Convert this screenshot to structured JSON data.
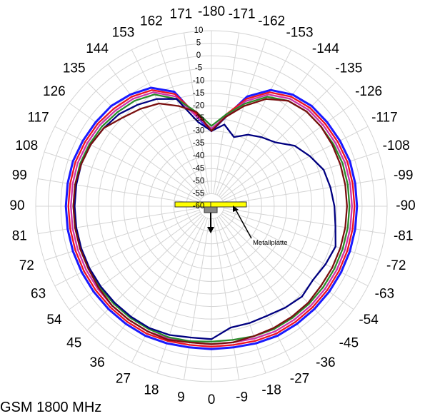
{
  "chart_data": {
    "type": "polar_line",
    "title": "",
    "angle_labels": [
      "0",
      "9",
      "18",
      "27",
      "36",
      "45",
      "54",
      "63",
      "72",
      "81",
      "90",
      "99",
      "108",
      "117",
      "126",
      "135",
      "144",
      "153",
      "162",
      "171",
      "-180",
      "-171",
      "-162",
      "-153",
      "-144",
      "-135",
      "-126",
      "-117",
      "-108",
      "-99",
      "-90",
      "-81",
      "-72",
      "-63",
      "-54",
      "-45",
      "-36",
      "-27",
      "-18",
      "-9"
    ],
    "angle_values": [
      0,
      9,
      18,
      27,
      36,
      45,
      54,
      63,
      72,
      81,
      90,
      99,
      108,
      117,
      126,
      135,
      144,
      153,
      162,
      171,
      180,
      -171,
      -162,
      -153,
      -144,
      -135,
      -126,
      -117,
      -108,
      -99,
      -90,
      -81,
      -72,
      -63,
      -54,
      -45,
      -36,
      -27,
      -18,
      -9
    ],
    "radial_labels": [
      "10",
      "5",
      "0",
      "-5",
      "-10",
      "-15",
      "-20",
      "-25",
      "-30",
      "-35",
      "-40",
      "-45",
      "-50",
      "-55",
      "-60"
    ],
    "rlim": [
      -60,
      10
    ],
    "grid": true,
    "angles": [
      0,
      9,
      18,
      27,
      36,
      45,
      54,
      63,
      72,
      81,
      90,
      99,
      108,
      117,
      126,
      135,
      144,
      153,
      162,
      171,
      180,
      -171,
      -162,
      -153,
      -144,
      -135,
      -126,
      -117,
      -108,
      -99,
      -90,
      -81,
      -72,
      -63,
      -54,
      -45,
      -36,
      -27,
      -18,
      -9
    ],
    "series": [
      {
        "color": "#1a1aff",
        "values": [
          -3,
          -3,
          -2.5,
          -2,
          -2,
          -2,
          -2,
          -2,
          -2,
          -2,
          -2,
          -2,
          -2,
          -2.5,
          -3,
          -3.5,
          -5,
          -7,
          -12,
          -24,
          -30,
          -24,
          -14,
          -8,
          -5,
          -3.5,
          -3,
          -2.5,
          -2,
          -2,
          -2,
          -2,
          -2,
          -2,
          -2,
          -2,
          -2,
          -2,
          -2.5,
          -3
        ]
      },
      {
        "color": "#ee1122",
        "values": [
          -4,
          -4,
          -3.5,
          -3,
          -3,
          -3,
          -3,
          -3,
          -3,
          -3,
          -3,
          -3,
          -3,
          -3.5,
          -4,
          -5,
          -6,
          -8,
          -13,
          -23,
          -30,
          -23,
          -15,
          -9,
          -6,
          -4.5,
          -4,
          -3.5,
          -3,
          -3,
          -3,
          -3,
          -3,
          -3,
          -3,
          -3,
          -3,
          -3,
          -3.5,
          -4
        ]
      },
      {
        "color": "#cc33aa",
        "values": [
          -5,
          -5,
          -4.5,
          -4,
          -4,
          -4,
          -4,
          -4,
          -4,
          -4,
          -4,
          -4,
          -4,
          -4.5,
          -5,
          -6,
          -7,
          -9,
          -14,
          -24,
          -29,
          -24,
          -16,
          -10,
          -7,
          -5.5,
          -5,
          -4.5,
          -4,
          -4,
          -4,
          -4,
          -4,
          -4,
          -4,
          -4,
          -4,
          -4,
          -4.5,
          -5
        ]
      },
      {
        "color": "#2a8a2a",
        "values": [
          -6,
          -5.5,
          -5,
          -5,
          -5,
          -5,
          -5,
          -5,
          -5,
          -5,
          -5,
          -5,
          -5,
          -5.5,
          -6,
          -7,
          -8,
          -10,
          -15,
          -22,
          -28,
          -23,
          -17,
          -11,
          -8,
          -6.5,
          -6,
          -5.5,
          -5,
          -5,
          -5,
          -5,
          -5,
          -5,
          -5,
          -5,
          -5,
          -5,
          -5.5,
          -6
        ]
      },
      {
        "color": "#000080",
        "values": [
          -7,
          -7,
          -6,
          -5.5,
          -5.5,
          -5.5,
          -5.5,
          -5.5,
          -5.5,
          -5.5,
          -5.5,
          -5.5,
          -5.5,
          -6,
          -7,
          -8,
          -10,
          -12,
          -15,
          -26,
          -30,
          -27,
          -31,
          -28,
          -26,
          -24,
          -19,
          -16,
          -13,
          -12,
          -11,
          -10,
          -8,
          -9,
          -10,
          -9,
          -10,
          -11,
          -11,
          -11
        ]
      },
      {
        "color": "#7a0f0f",
        "values": [
          -5,
          -5,
          -4,
          -4,
          -4,
          -4,
          -4.5,
          -5,
          -5,
          -5,
          -5,
          -5,
          -5.5,
          -6,
          -7,
          -10,
          -12,
          -14,
          -18,
          -22,
          -30,
          -24,
          -18,
          -12,
          -8,
          -6.5,
          -6,
          -6,
          -6,
          -6,
          -6,
          -6,
          -6,
          -6,
          -6,
          -5.5,
          -5.5,
          -5.5,
          -5.5,
          -5
        ]
      }
    ],
    "annotation": "Metallplatte"
  },
  "caption": "GSM 1800 MHz"
}
